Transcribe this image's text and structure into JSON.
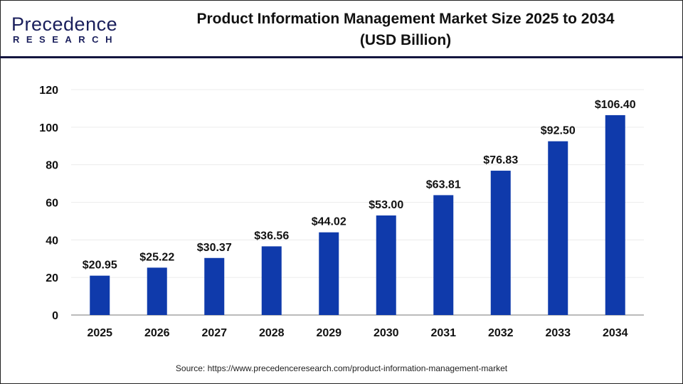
{
  "logo": {
    "main": "Precedence",
    "sub": "RESEARCH"
  },
  "title_line1": "Product Information Management Market Size 2025 to 2034",
  "title_line2": "(USD Billion)",
  "source": "Source: https://www.precedenceresearch.com/product-information-management-market",
  "chart_data": {
    "type": "bar",
    "title": "Product Information Management Market Size 2025 to 2034 (USD Billion)",
    "categories": [
      "2025",
      "2026",
      "2027",
      "2028",
      "2029",
      "2030",
      "2031",
      "2032",
      "2033",
      "2034"
    ],
    "values": [
      20.95,
      25.22,
      30.37,
      36.56,
      44.02,
      53.0,
      63.81,
      76.83,
      92.5,
      106.4
    ],
    "data_labels": [
      "$20.95",
      "$25.22",
      "$30.37",
      "$36.56",
      "$44.02",
      "$53.00",
      "$63.81",
      "$76.83",
      "$92.50",
      "$106.40"
    ],
    "ylim": [
      0,
      120
    ],
    "yticks": [
      0,
      20,
      40,
      60,
      80,
      100,
      120
    ],
    "grid": true,
    "bar_color": "#0f3aab",
    "xlabel": "",
    "ylabel": ""
  }
}
